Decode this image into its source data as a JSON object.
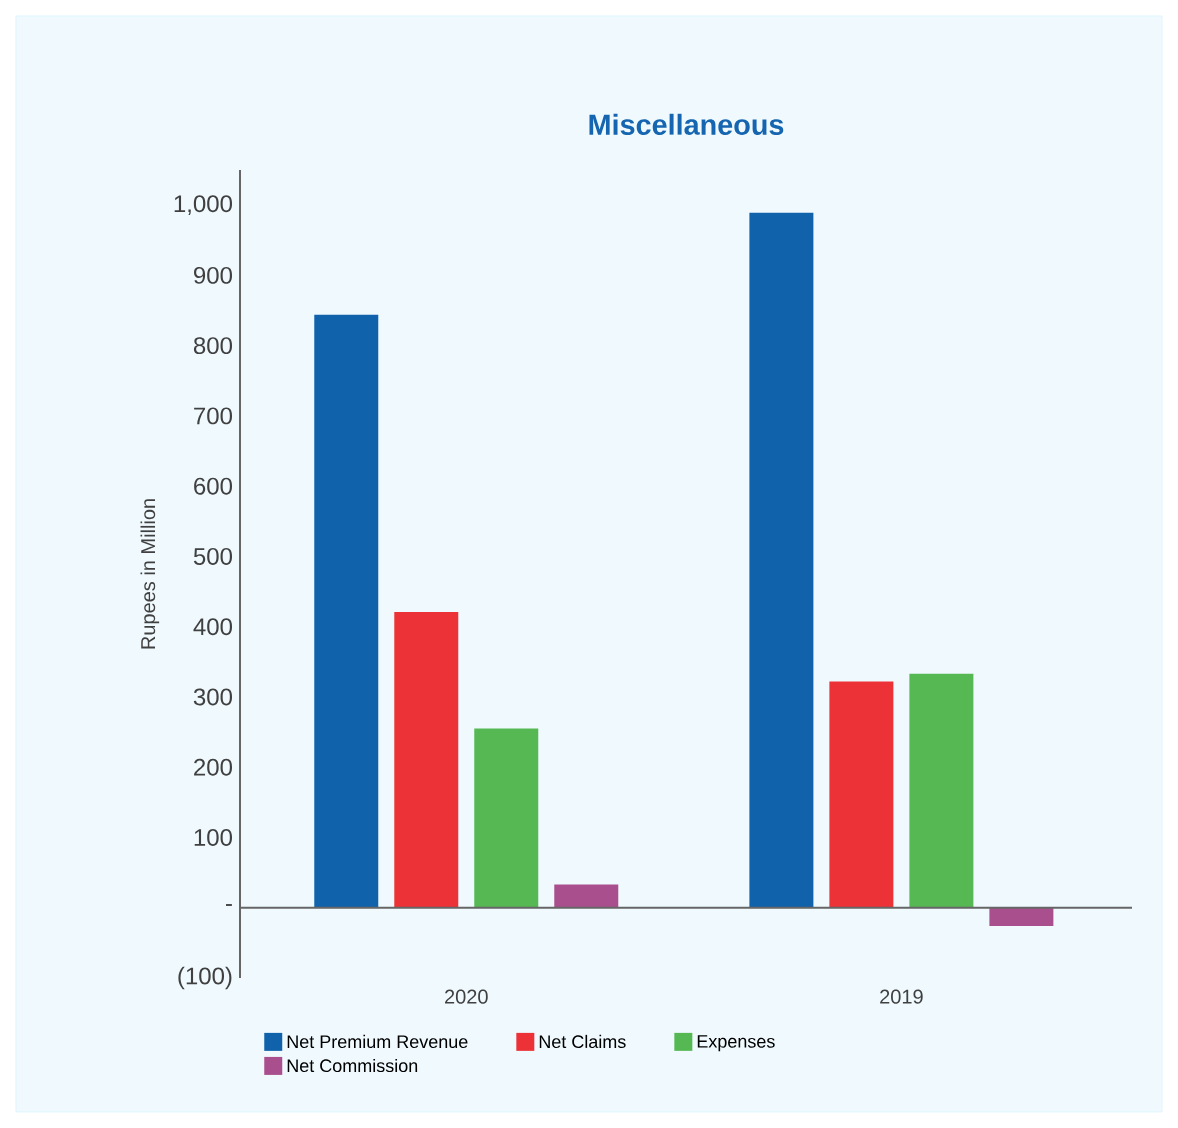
{
  "chart_data": {
    "type": "bar",
    "title": "Miscellaneous",
    "ylabel": "Rupees in Million",
    "categories": [
      "2020",
      "2019"
    ],
    "series": [
      {
        "name": "Net Premium Revenue",
        "color": "#1062ab",
        "values": [
          844,
          989
        ]
      },
      {
        "name": "Net Claims",
        "color": "#ec3237",
        "values": [
          421,
          322
        ]
      },
      {
        "name": "Expenses",
        "color": "#55b853",
        "values": [
          255,
          333
        ]
      },
      {
        "name": "Net Commission",
        "color": "#aa4f8d",
        "values": [
          33,
          -26
        ]
      }
    ],
    "ylim": [
      -100,
      1050
    ],
    "yticks": [
      {
        "value": -100,
        "label": "(100)"
      },
      {
        "value": 0,
        "label": "-"
      },
      100,
      200,
      300,
      400,
      500,
      600,
      700,
      800,
      900,
      {
        "value": 1000,
        "label": "1,000"
      }
    ],
    "legend": "bottom"
  }
}
